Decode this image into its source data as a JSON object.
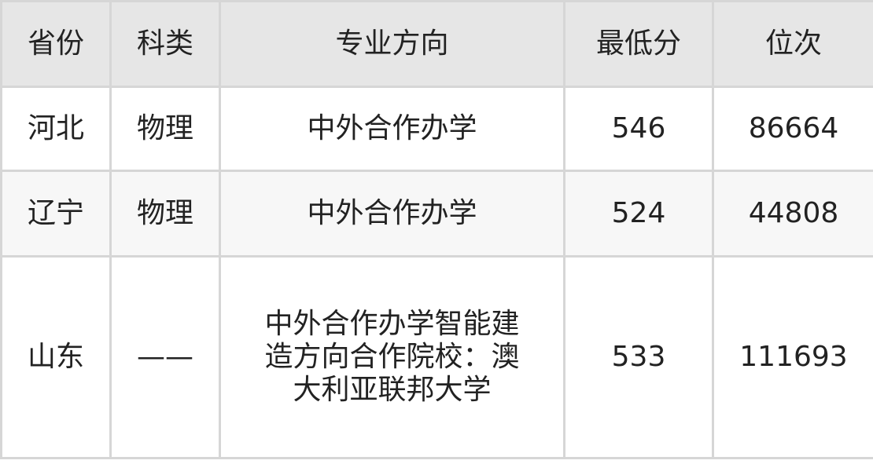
{
  "table": {
    "headers": [
      "省份",
      "科类",
      "专业方向",
      "最低分",
      "位次"
    ],
    "rows": [
      [
        "河北",
        "物理",
        "中外合作办学",
        "546",
        "86664"
      ],
      [
        "辽宁",
        "物理",
        "中外合作办学",
        "524",
        "44808"
      ],
      [
        "山东",
        "——",
        "中外合作办学智能建造方向合作院校：澳大利亚联邦大学",
        "533",
        "111693"
      ]
    ]
  }
}
